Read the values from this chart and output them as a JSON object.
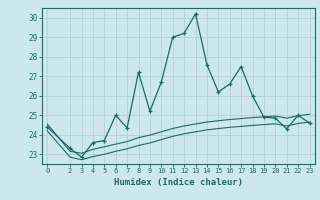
{
  "xlabel": "Humidex (Indice chaleur)",
  "bg_color": "#cce8ec",
  "grid_color": "#b8d4d8",
  "line_color": "#1a6b6b",
  "x_ticks": [
    0,
    2,
    3,
    4,
    5,
    6,
    7,
    8,
    9,
    10,
    11,
    12,
    13,
    14,
    15,
    16,
    17,
    18,
    19,
    20,
    21,
    22,
    23
  ],
  "ylim": [
    22.5,
    30.5
  ],
  "xlim": [
    -0.5,
    23.5
  ],
  "series1_x": [
    0,
    2,
    3,
    4,
    5,
    6,
    7,
    8,
    9,
    10,
    11,
    12,
    13,
    14,
    15,
    16,
    17,
    18,
    19,
    20,
    21,
    22,
    23
  ],
  "series1_y": [
    24.4,
    23.3,
    22.85,
    23.6,
    23.7,
    25.0,
    24.35,
    27.2,
    25.2,
    26.7,
    29.0,
    29.2,
    30.2,
    27.6,
    26.2,
    26.6,
    27.5,
    26.0,
    24.9,
    24.85,
    24.3,
    25.0,
    24.6
  ],
  "series2_x": [
    0,
    2,
    3,
    4,
    5,
    6,
    7,
    8,
    9,
    10,
    11,
    12,
    13,
    14,
    15,
    16,
    17,
    18,
    19,
    20,
    21,
    22,
    23
  ],
  "series2_y": [
    24.55,
    23.15,
    23.05,
    23.25,
    23.38,
    23.52,
    23.65,
    23.85,
    23.98,
    24.15,
    24.32,
    24.45,
    24.55,
    24.65,
    24.72,
    24.78,
    24.83,
    24.88,
    24.92,
    24.96,
    24.85,
    24.98,
    25.05
  ],
  "series3_x": [
    0,
    2,
    3,
    4,
    5,
    6,
    7,
    8,
    9,
    10,
    11,
    12,
    13,
    14,
    15,
    16,
    17,
    18,
    19,
    20,
    21,
    22,
    23
  ],
  "series3_y": [
    24.2,
    22.85,
    22.72,
    22.88,
    23.0,
    23.15,
    23.28,
    23.45,
    23.58,
    23.75,
    23.92,
    24.05,
    24.15,
    24.25,
    24.32,
    24.38,
    24.43,
    24.48,
    24.52,
    24.56,
    24.45,
    24.58,
    24.65
  ],
  "yticks": [
    23,
    24,
    25,
    26,
    27,
    28,
    29,
    30
  ]
}
